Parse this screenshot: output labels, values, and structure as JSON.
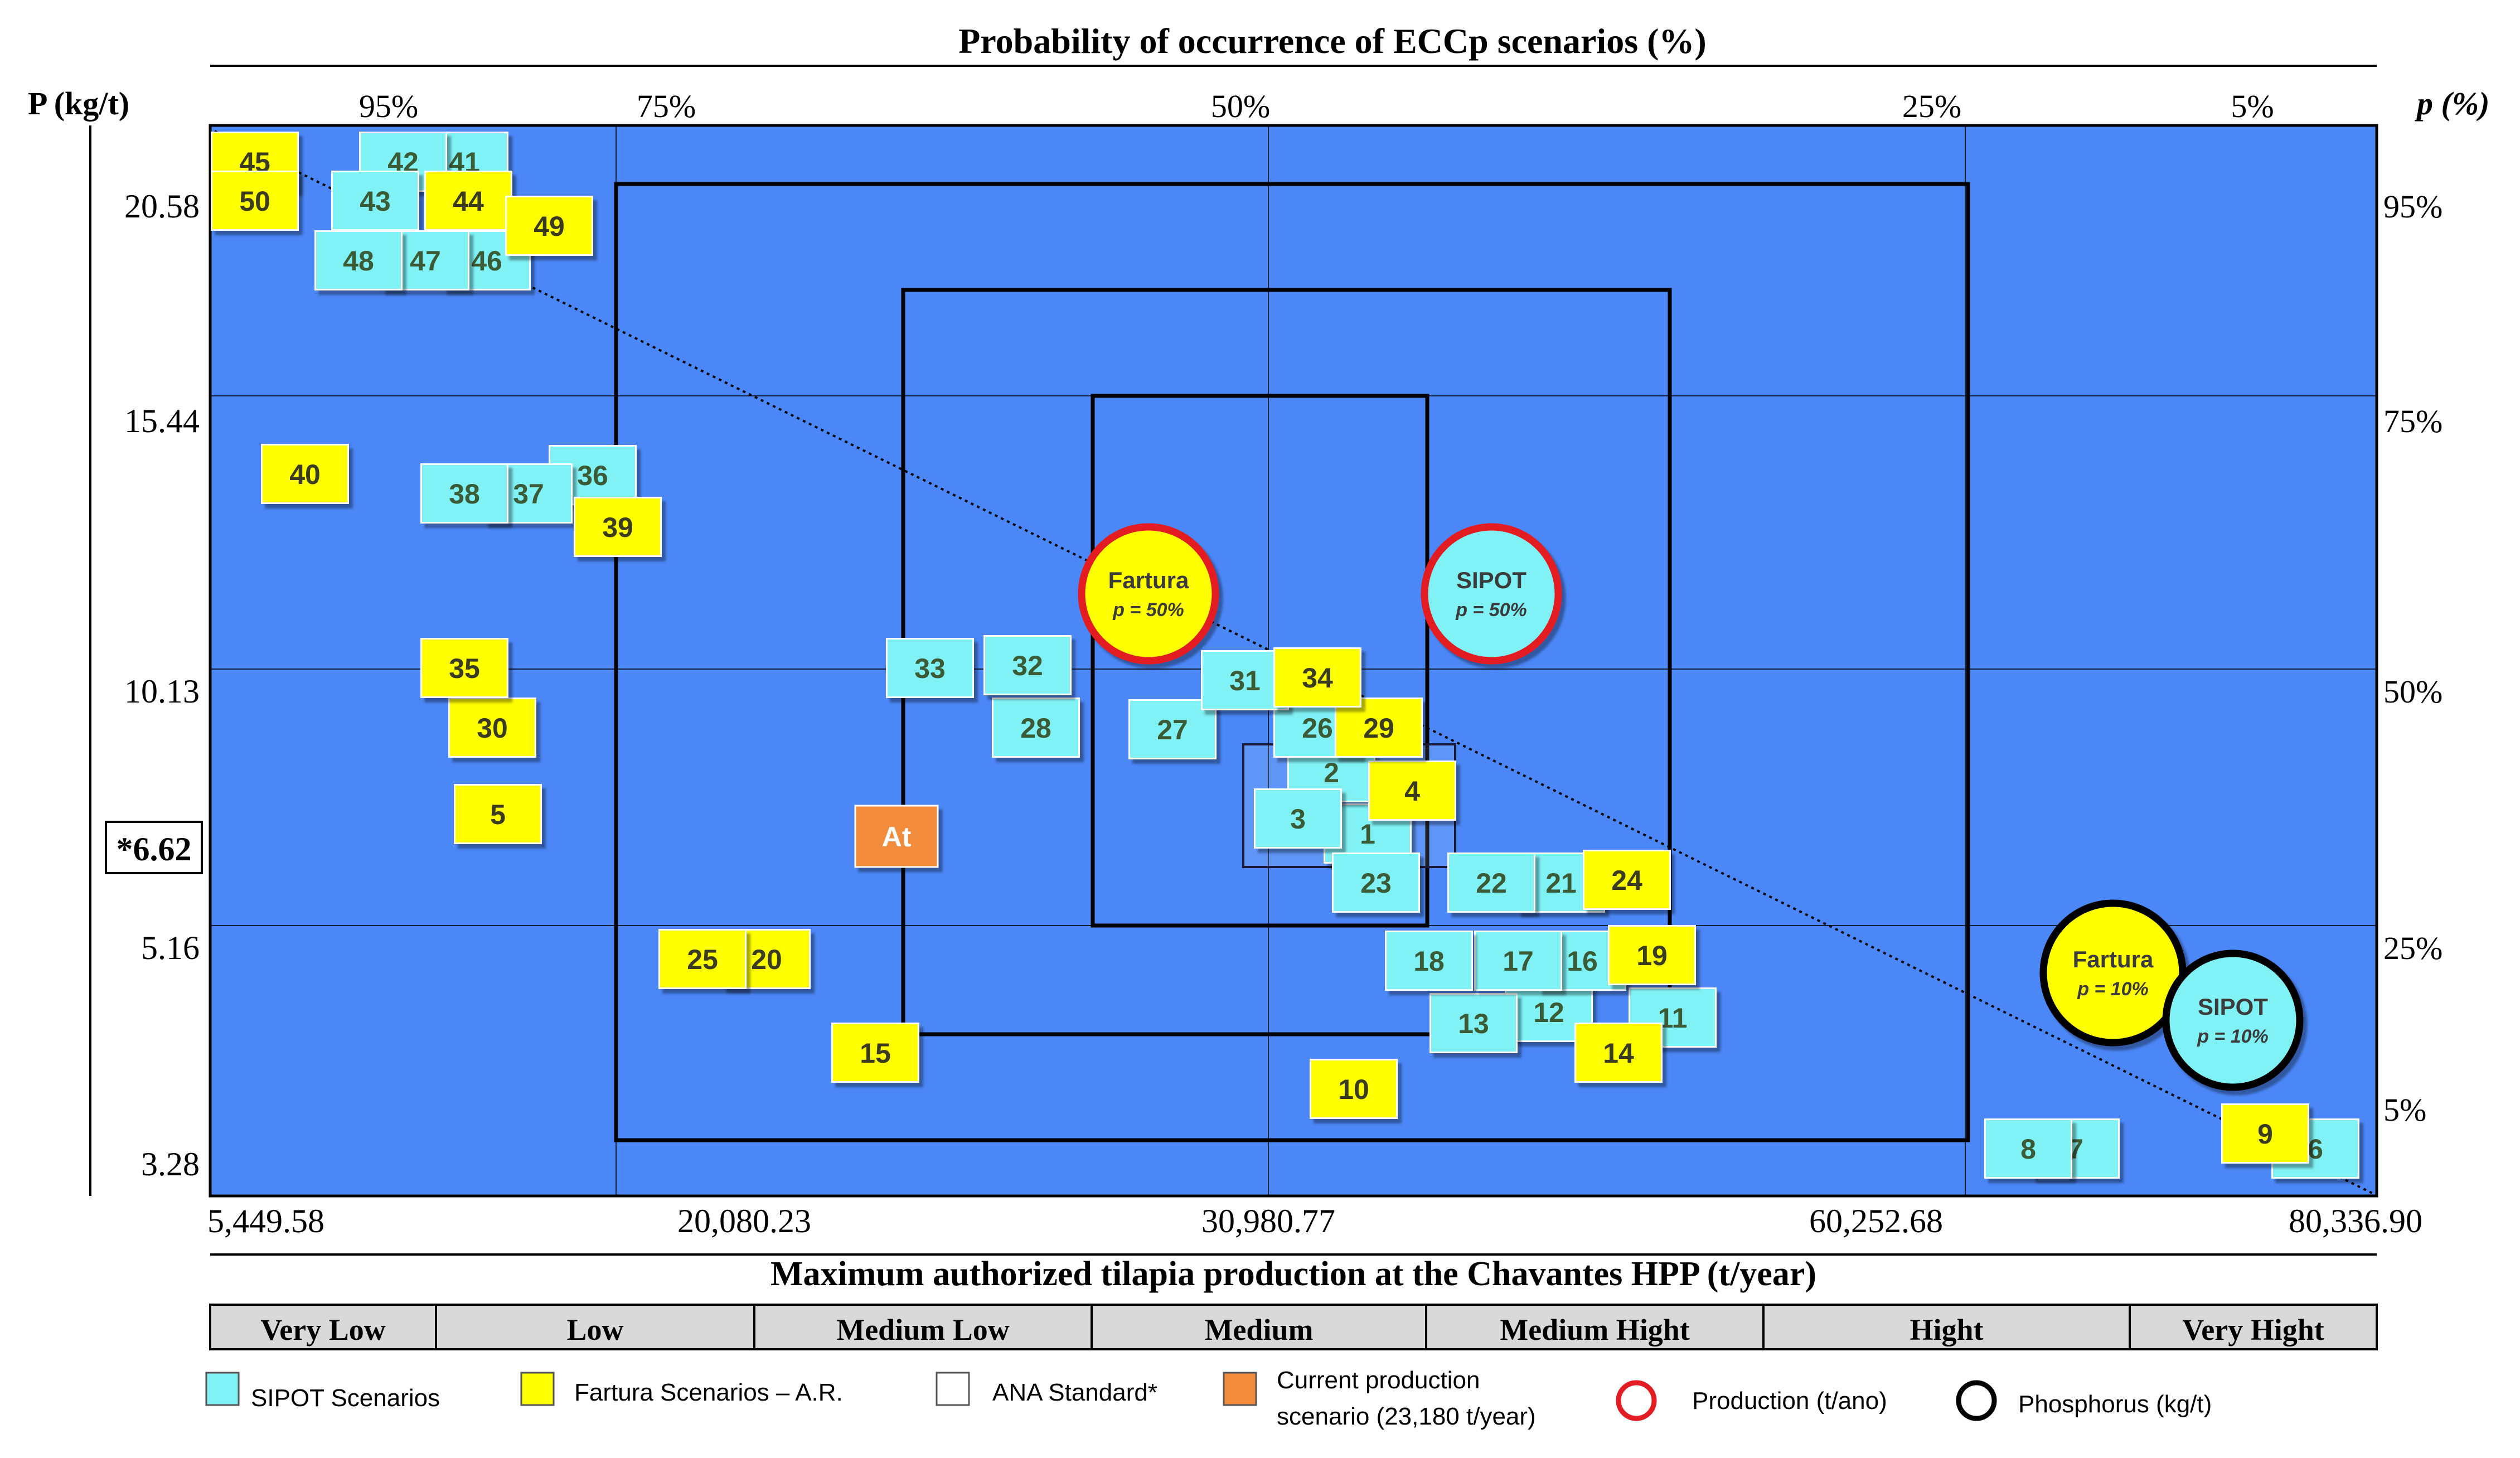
{
  "chart_data": {
    "type": "scatter",
    "title": "Probability of occurrence of ECCp scenarios (%)",
    "xlabel": "Maximum authorized tilapia production at the Chavantes HPP (t/year)",
    "ylabel_left": "P (kg/t)",
    "ylabel_right": "p (%)",
    "x_ticks": [
      "5,449.58",
      "20,080.23",
      "30,980.77",
      "60,252.68",
      "80,336.90"
    ],
    "y_ticks": [
      "20.58",
      "15.44",
      "10.13",
      "5.16",
      "3.28"
    ],
    "y_highlight": "*6.62",
    "top_prob_ticks": [
      "95%",
      "75%",
      "50%",
      "25%",
      "5%"
    ],
    "right_prob_ticks": [
      "95%",
      "75%",
      "50%",
      "25%",
      "5%"
    ],
    "production_classes": [
      "Very Low",
      "Low",
      "Medium Low",
      "Medium",
      "Medium Hight",
      "Hight",
      "Very Hight"
    ],
    "sipot_scenarios": [
      "1",
      "2",
      "3",
      "6",
      "7",
      "8",
      "11",
      "12",
      "13",
      "16",
      "17",
      "18",
      "21",
      "22",
      "23",
      "26",
      "27",
      "28",
      "31",
      "32",
      "33",
      "36",
      "37",
      "38",
      "41",
      "42",
      "43",
      "46",
      "47",
      "48"
    ],
    "fartura_scenarios": [
      "4",
      "5",
      "9",
      "10",
      "14",
      "15",
      "19",
      "20",
      "24",
      "25",
      "29",
      "30",
      "34",
      "35",
      "39",
      "40",
      "44",
      "45",
      "49",
      "50"
    ],
    "current_scenario": "At",
    "ana_standard_value": "*6.62",
    "probability_circles": [
      {
        "name": "Fartura",
        "p": "p = 50%"
      },
      {
        "name": "SIPOT",
        "p": "p = 50%"
      },
      {
        "name": "Fartura",
        "p": "p = 10%"
      },
      {
        "name": "SIPOT",
        "p": "p = 10%"
      }
    ],
    "legend": [
      "SIPOT Scenarios",
      "Fartura Scenarios – A.R.",
      "ANA Standard*",
      "Current production scenario (23,180 t/year)",
      "Production (t/ano)",
      "Phosphorus (kg/t)"
    ]
  },
  "colors": {
    "plot_bg": "#4b87f7",
    "sipot": "#80f2f6",
    "fartura": "#ffff00",
    "current": "#f28c3c",
    "production_ring": "#e31b23",
    "phosphorus_ring": "#000000",
    "class_bar": "#d9d9d9"
  }
}
